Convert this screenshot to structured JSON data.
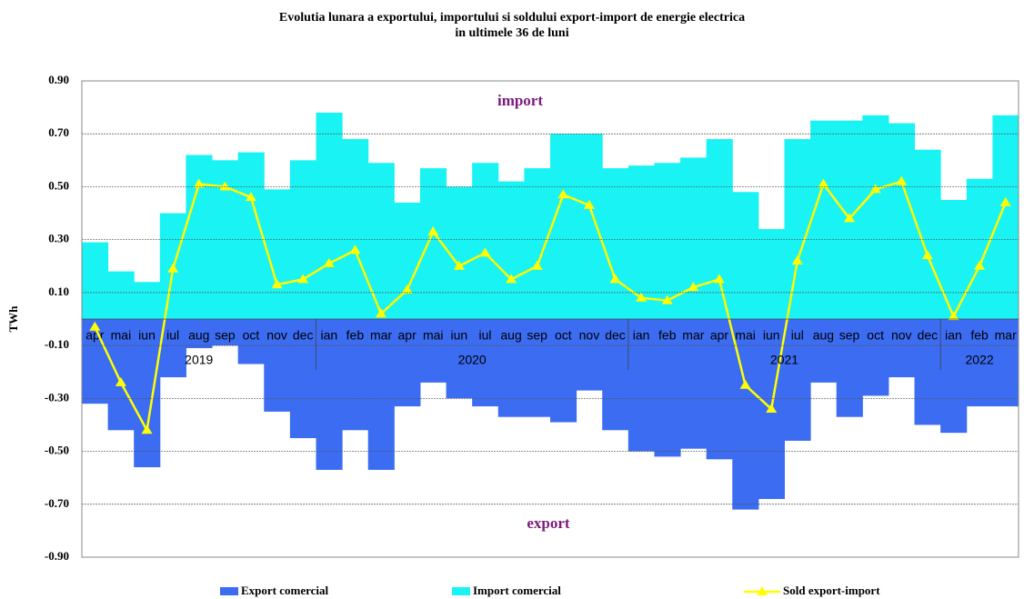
{
  "chart_data": {
    "type": "bar_line",
    "title": "Evolutia lunara a exportului, importului si soldului export-import de energie electrica",
    "subtitle": "in ultimele 36 de luni",
    "y_label": "TWh",
    "annotations": [
      "import",
      "export"
    ],
    "categories": [
      "apr",
      "mai",
      "iun",
      "iul",
      "aug",
      "sep",
      "oct",
      "nov",
      "dec",
      "ian",
      "feb",
      "mar",
      "apr",
      "mai",
      "iun",
      "iul",
      "aug",
      "sep",
      "oct",
      "nov",
      "dec",
      "ian",
      "feb",
      "mar",
      "apr",
      "mai",
      "iun",
      "iul",
      "aug",
      "sep",
      "oct",
      "nov",
      "dec",
      "ian",
      "feb",
      "mar"
    ],
    "years": [
      "2019",
      "2020",
      "2021",
      "2022"
    ],
    "series": [
      {
        "name": "Export comercial",
        "color": "#3b6cf2",
        "kind": "bar",
        "values": [
          -0.32,
          -0.42,
          -0.56,
          -0.22,
          -0.11,
          -0.1,
          -0.17,
          -0.35,
          -0.45,
          -0.57,
          -0.42,
          -0.57,
          -0.33,
          -0.24,
          -0.3,
          -0.33,
          -0.37,
          -0.37,
          -0.39,
          -0.27,
          -0.42,
          -0.5,
          -0.52,
          -0.49,
          -0.53,
          -0.72,
          -0.68,
          -0.46,
          -0.24,
          -0.37,
          -0.29,
          -0.22,
          -0.4,
          -0.43,
          -0.33,
          -0.33
        ]
      },
      {
        "name": "Import comercial",
        "color": "#19f3f3",
        "kind": "bar",
        "values": [
          0.29,
          0.18,
          0.14,
          0.4,
          0.62,
          0.6,
          0.63,
          0.49,
          0.6,
          0.78,
          0.68,
          0.59,
          0.44,
          0.57,
          0.5,
          0.59,
          0.52,
          0.57,
          0.7,
          0.7,
          0.57,
          0.58,
          0.59,
          0.61,
          0.68,
          0.48,
          0.34,
          0.68,
          0.75,
          0.75,
          0.77,
          0.74,
          0.64,
          0.45,
          0.53,
          0.77
        ]
      },
      {
        "name": "Sold export-import",
        "color": "#ffff00",
        "kind": "line",
        "values": [
          -0.03,
          -0.24,
          -0.42,
          0.19,
          0.51,
          0.5,
          0.46,
          0.13,
          0.15,
          0.21,
          0.26,
          0.02,
          0.11,
          0.33,
          0.2,
          0.25,
          0.15,
          0.2,
          0.47,
          0.43,
          0.15,
          0.08,
          0.07,
          0.12,
          0.15,
          -0.25,
          -0.34,
          0.22,
          0.51,
          0.38,
          0.49,
          0.52,
          0.24,
          0.01,
          0.2,
          0.44
        ]
      }
    ],
    "ylim": [
      -0.9,
      0.9
    ],
    "yticks": [
      {
        "value": 0.9,
        "label": "0.90"
      },
      {
        "value": 0.7,
        "label": "0.70"
      },
      {
        "value": 0.5,
        "label": "0.50"
      },
      {
        "value": 0.3,
        "label": "0.30"
      },
      {
        "value": 0.1,
        "label": "0.10"
      },
      {
        "value": -0.1,
        "label": "-0.10"
      },
      {
        "value": -0.3,
        "label": "-0.30"
      },
      {
        "value": -0.5,
        "label": "-0.50"
      },
      {
        "value": -0.7,
        "label": "-0.70"
      },
      {
        "value": -0.9,
        "label": "-0.90"
      }
    ],
    "grid": true
  }
}
